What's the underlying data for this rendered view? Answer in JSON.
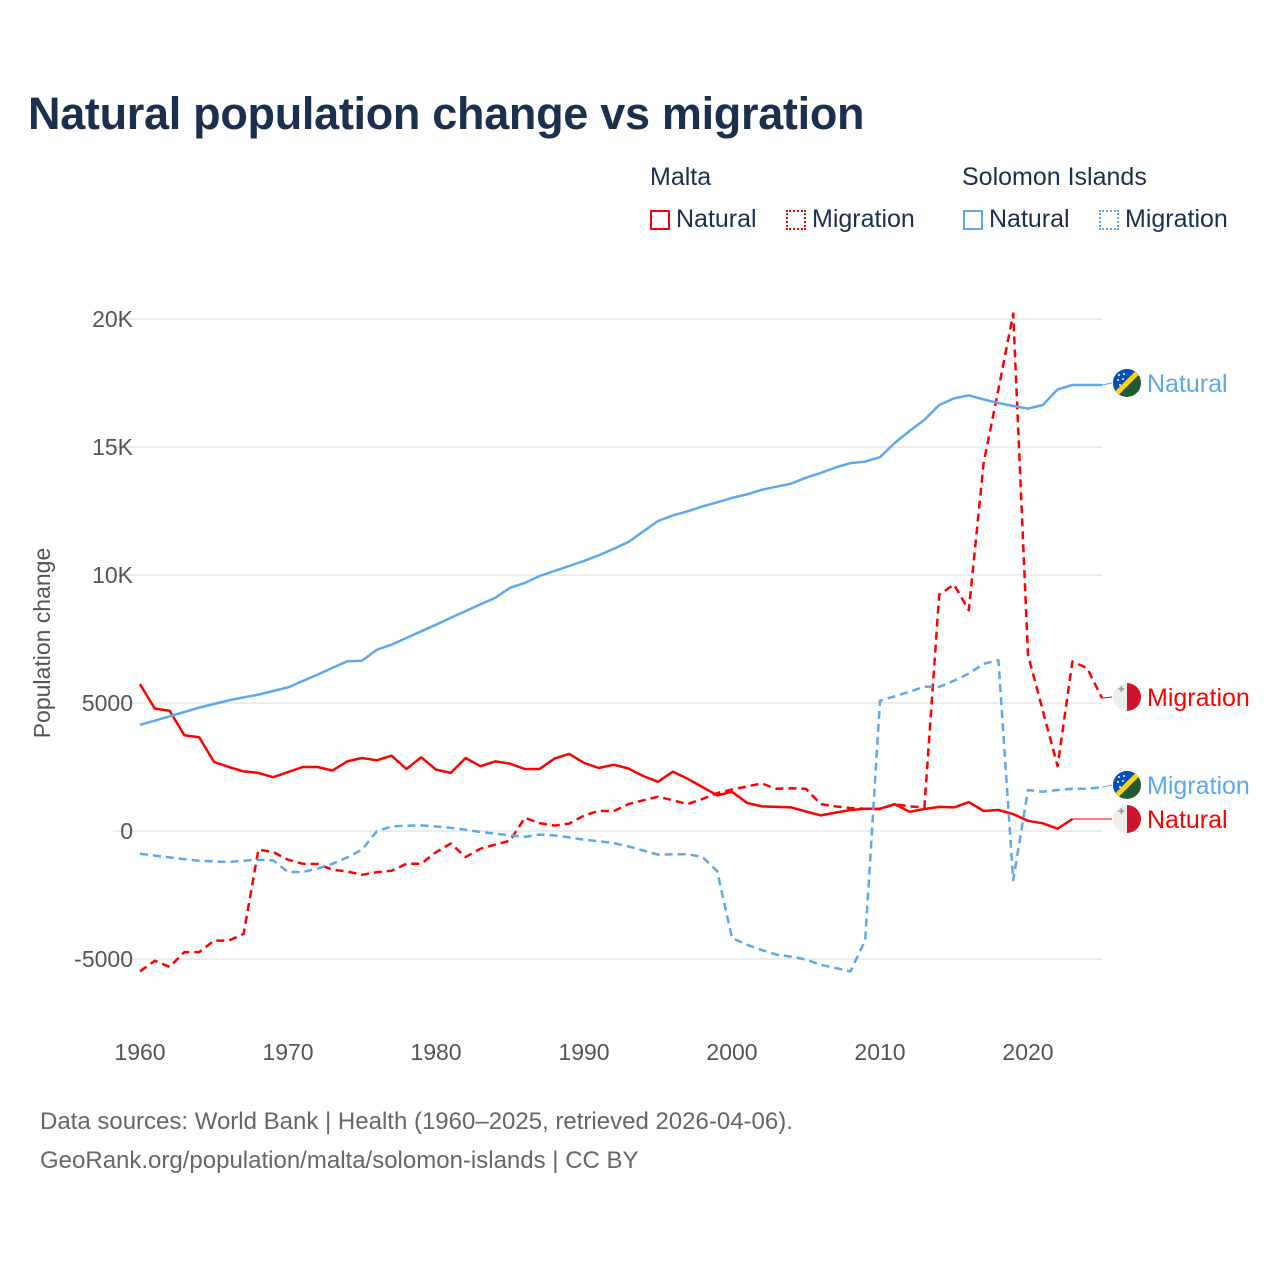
{
  "title": "Natural population change vs migration",
  "legend": {
    "groups": [
      {
        "country": "Malta",
        "color": "#ff0000",
        "items": [
          "Natural",
          "Migration"
        ]
      },
      {
        "country": "Solomon Islands",
        "color": "#5ea8ec",
        "items": [
          "Natural",
          "Migration"
        ]
      }
    ]
  },
  "footer": {
    "line1": "Data sources: World Bank | Health (1960–2025, retrieved 2026-04-06).",
    "line2": "GeoRank.org/population/malta/solomon-islands | CC BY"
  },
  "chart_data": {
    "type": "line",
    "title": "Natural population change vs migration",
    "xlabel": "",
    "ylabel": "Population change",
    "xlim": [
      1960,
      2025
    ],
    "ylim": [
      -5000,
      20000
    ],
    "xticks": [
      1960,
      1970,
      1980,
      1990,
      2000,
      2010,
      2020
    ],
    "yticks": [
      -5000,
      0,
      5000,
      10000,
      15000,
      20000
    ],
    "ytick_labels": [
      "-5000",
      "0",
      "5000",
      "10K",
      "15K",
      "20K"
    ],
    "grid": true,
    "series": [
      {
        "name": "Malta Natural",
        "label": "Natural",
        "country": "Malta",
        "style": "solid",
        "color": "#ff0000",
        "start": 1960,
        "values": [
          5740,
          4780,
          4700,
          3740,
          3660,
          2700,
          2500,
          2330,
          2270,
          2100,
          2300,
          2500,
          2500,
          2360,
          2720,
          2850,
          2760,
          2940,
          2420,
          2880,
          2400,
          2270,
          2850,
          2530,
          2720,
          2630,
          2420,
          2420,
          2830,
          3010,
          2660,
          2460,
          2590,
          2440,
          2150,
          1920,
          2320,
          2040,
          1720,
          1390,
          1530,
          1100,
          960,
          940,
          920,
          760,
          610,
          720,
          820,
          870,
          870,
          1050,
          750,
          860,
          940,
          920,
          1130,
          780,
          820,
          660,
          400,
          300,
          90,
          470
        ]
      },
      {
        "name": "Malta Migration",
        "label": "Migration",
        "country": "Malta",
        "style": "dashed",
        "color": "#ff0000",
        "start": 1960,
        "values": [
          -5480,
          -5070,
          -5310,
          -4730,
          -4730,
          -4280,
          -4280,
          -4020,
          -730,
          -820,
          -1120,
          -1280,
          -1290,
          -1510,
          -1580,
          -1710,
          -1610,
          -1550,
          -1280,
          -1280,
          -830,
          -490,
          -1020,
          -690,
          -530,
          -380,
          510,
          310,
          210,
          290,
          600,
          790,
          770,
          1050,
          1200,
          1340,
          1200,
          1050,
          1250,
          1480,
          1620,
          1740,
          1860,
          1650,
          1670,
          1650,
          1050,
          960,
          900,
          870,
          850,
          1050,
          960,
          920,
          9230,
          9630,
          8620,
          14370,
          17250,
          20210,
          6880,
          4700,
          2530,
          6620,
          6360,
          5190
        ]
      },
      {
        "name": "Solomon Islands Natural",
        "label": "Natural",
        "country": "Solomon Islands",
        "style": "solid",
        "color": "#5ea8ec",
        "start": 1960,
        "values": [
          4150,
          4310,
          4480,
          4650,
          4820,
          4960,
          5100,
          5220,
          5330,
          5470,
          5610,
          5860,
          6110,
          6370,
          6630,
          6650,
          7080,
          7280,
          7540,
          7800,
          8060,
          8330,
          8590,
          8850,
          9110,
          9500,
          9690,
          9960,
          10160,
          10350,
          10550,
          10770,
          11020,
          11290,
          11700,
          12110,
          12330,
          12490,
          12680,
          12840,
          13010,
          13150,
          13330,
          13450,
          13570,
          13800,
          13990,
          14200,
          14370,
          14430,
          14600,
          15160,
          15630,
          16060,
          16640,
          16900,
          17020,
          16860,
          16720,
          16600,
          16500,
          16640,
          17250,
          17420,
          17420,
          17420
        ]
      },
      {
        "name": "Solomon Islands Migration",
        "label": "Migration",
        "country": "Solomon Islands",
        "style": "dashed",
        "color": "#5ea8ec",
        "start": 1960,
        "values": [
          -890,
          -960,
          -1030,
          -1100,
          -1160,
          -1190,
          -1210,
          -1160,
          -1120,
          -1150,
          -1600,
          -1600,
          -1470,
          -1280,
          -1030,
          -730,
          -10,
          180,
          210,
          220,
          180,
          120,
          50,
          -40,
          -100,
          -170,
          -230,
          -140,
          -170,
          -250,
          -340,
          -400,
          -470,
          -600,
          -760,
          -920,
          -910,
          -910,
          -1010,
          -1570,
          -4180,
          -4440,
          -4650,
          -4830,
          -4910,
          -5020,
          -5230,
          -5350,
          -5490,
          -4270,
          5090,
          5260,
          5440,
          5640,
          5630,
          5870,
          6150,
          6530,
          6670,
          -1920,
          1600,
          1530,
          1600,
          1650,
          1650,
          1710
        ]
      }
    ]
  }
}
